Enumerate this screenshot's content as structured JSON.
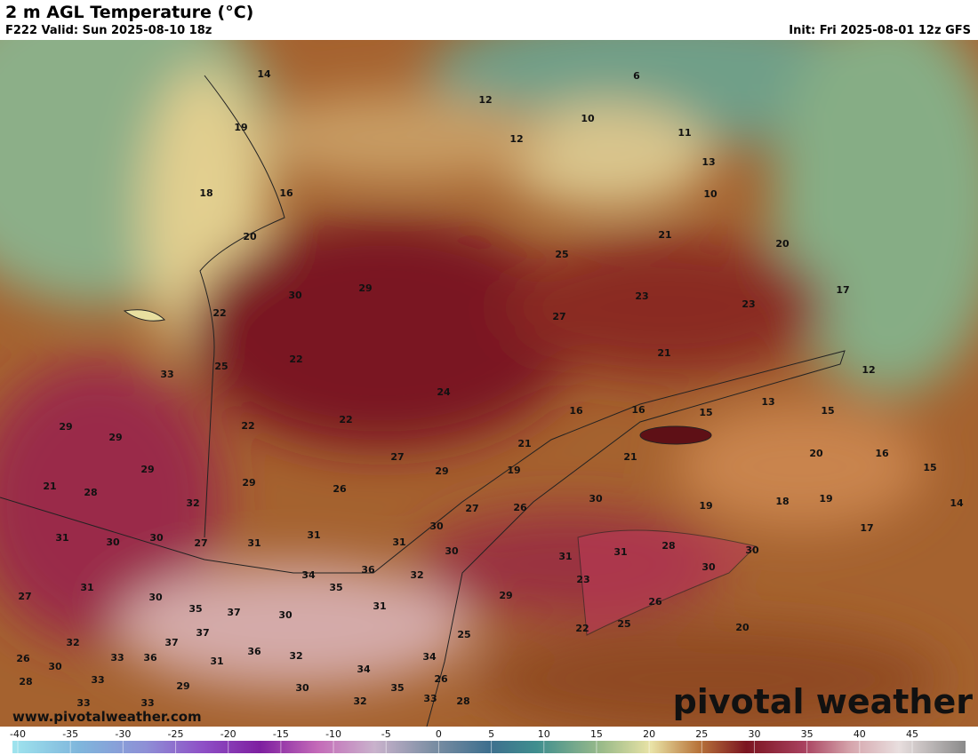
{
  "header": {
    "title": "2 m AGL Temperature (°C)",
    "valid": "F222 Valid: Sun 2025-08-10 18z",
    "init": "Init: Fri 2025-08-01 12z GFS"
  },
  "map": {
    "labels": [
      14,
      6,
      12,
      10,
      19,
      12,
      11,
      13,
      10,
      18,
      16,
      21,
      20,
      20,
      25,
      30,
      29,
      23,
      17,
      23,
      22,
      27,
      21,
      22,
      25,
      33,
      12,
      24,
      13,
      16,
      16,
      15,
      15,
      22,
      22,
      29,
      29,
      21,
      20,
      16,
      27,
      21,
      29,
      29,
      19,
      15,
      21,
      28,
      29,
      26,
      32,
      30,
      18,
      19,
      14,
      27,
      26,
      19,
      17,
      31,
      30,
      30,
      27,
      31,
      31,
      30,
      31,
      28,
      30,
      30,
      31,
      31,
      30,
      36,
      34,
      32,
      23,
      27,
      31,
      30,
      35,
      29,
      31,
      26,
      35,
      37,
      30,
      20,
      22,
      25,
      25,
      37,
      37,
      32,
      36,
      32,
      34,
      33,
      36,
      31,
      26,
      30,
      34,
      28,
      33,
      26,
      29,
      30,
      35,
      32,
      33,
      28,
      33,
      33
    ],
    "url": "www.pivotalweather.com",
    "brand": "pivotal weather"
  },
  "colorbar": {
    "ticks": [
      -40,
      -35,
      -30,
      -25,
      -20,
      -15,
      -10,
      -5,
      0,
      5,
      10,
      15,
      20,
      25,
      30,
      35,
      40,
      45
    ]
  }
}
